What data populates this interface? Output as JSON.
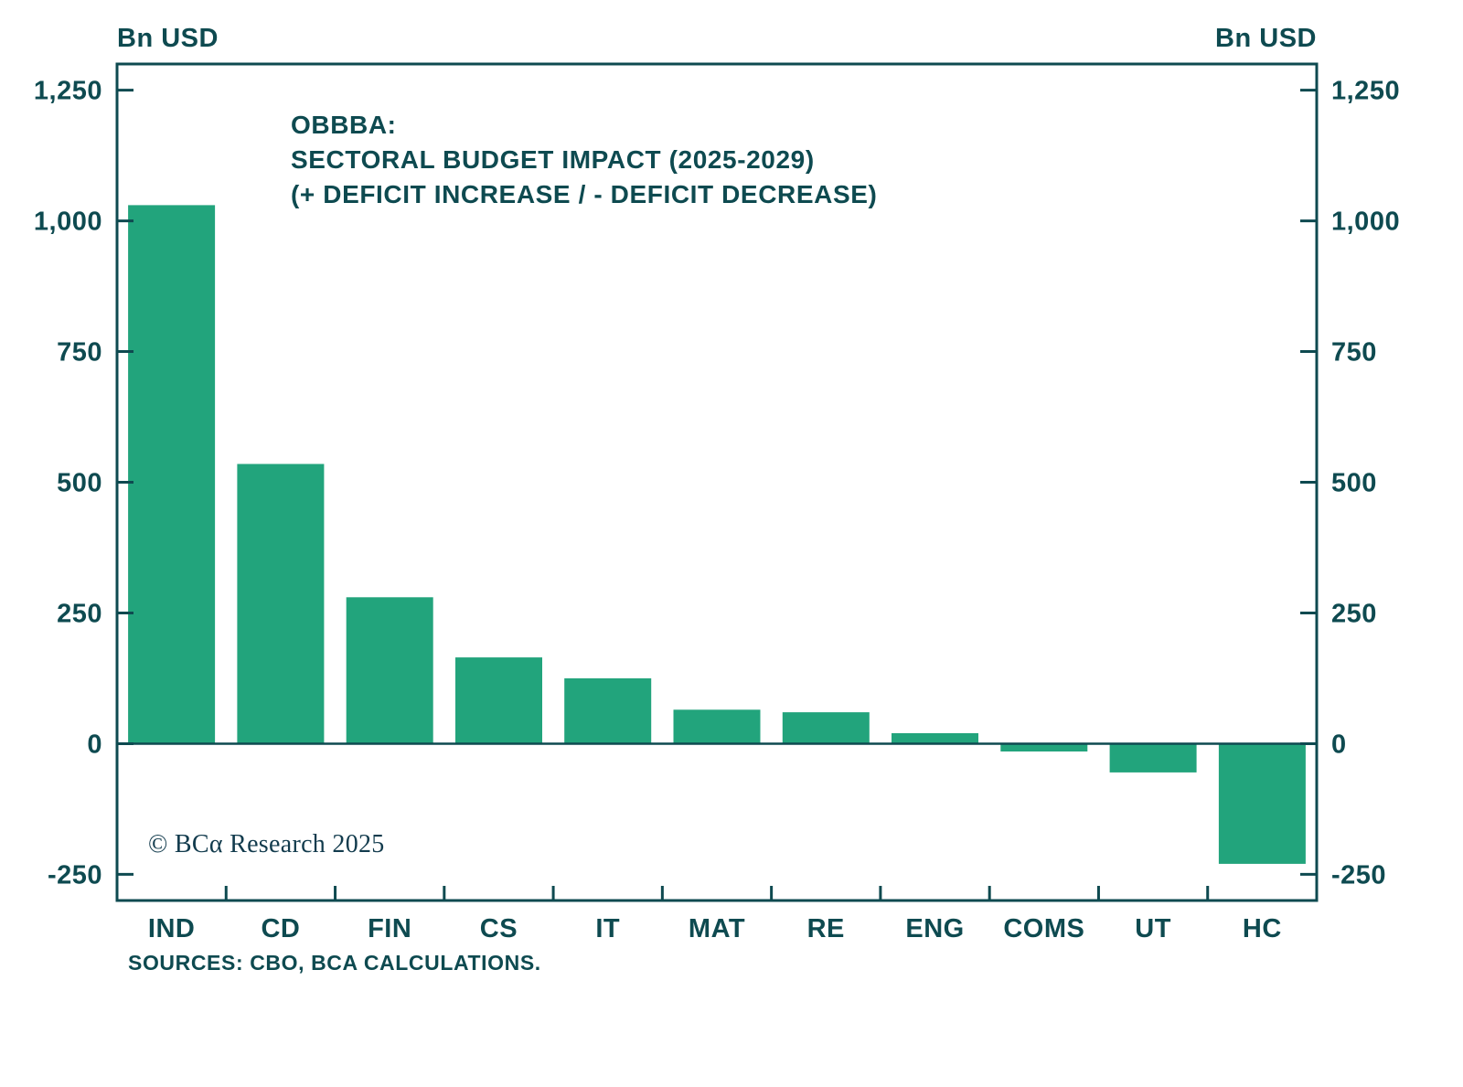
{
  "chart_data": {
    "type": "bar",
    "title": "OBBBA: SECTORAL BUDGET IMPACT (2025-2029) (+ DEFICIT INCREASE / - DEFICIT DECREASE)",
    "title_lines": [
      "OBBBA:",
      "SECTORAL BUDGET IMPACT (2025-2029)",
      "(+ DEFICIT INCREASE / - DEFICIT DECREASE)"
    ],
    "unit_label_left": "Bn USD",
    "unit_label_right": "Bn USD",
    "categories": [
      "IND",
      "CD",
      "FIN",
      "CS",
      "IT",
      "MAT",
      "RE",
      "ENG",
      "COMS",
      "UT",
      "HC"
    ],
    "values": [
      1030,
      535,
      280,
      165,
      125,
      65,
      60,
      20,
      -15,
      -55,
      -230
    ],
    "ylabel": "Bn USD",
    "ylim": [
      -300,
      1300
    ],
    "yticks": [
      {
        "value": 1250,
        "label": "1,250"
      },
      {
        "value": 1000,
        "label": "1,000"
      },
      {
        "value": 750,
        "label": "750"
      },
      {
        "value": 500,
        "label": "500"
      },
      {
        "value": 250,
        "label": "250"
      },
      {
        "value": 0,
        "label": "0"
      },
      {
        "value": -250,
        "label": "-250"
      }
    ],
    "grid": false,
    "legend_position": "none",
    "bar_color": "#22A47C",
    "text_color": "#0E4A50",
    "axis_color": "#0E4A50",
    "copyright": "© BCα Research 2025",
    "source_note": "SOURCES: CBO, BCA CALCULATIONS."
  }
}
